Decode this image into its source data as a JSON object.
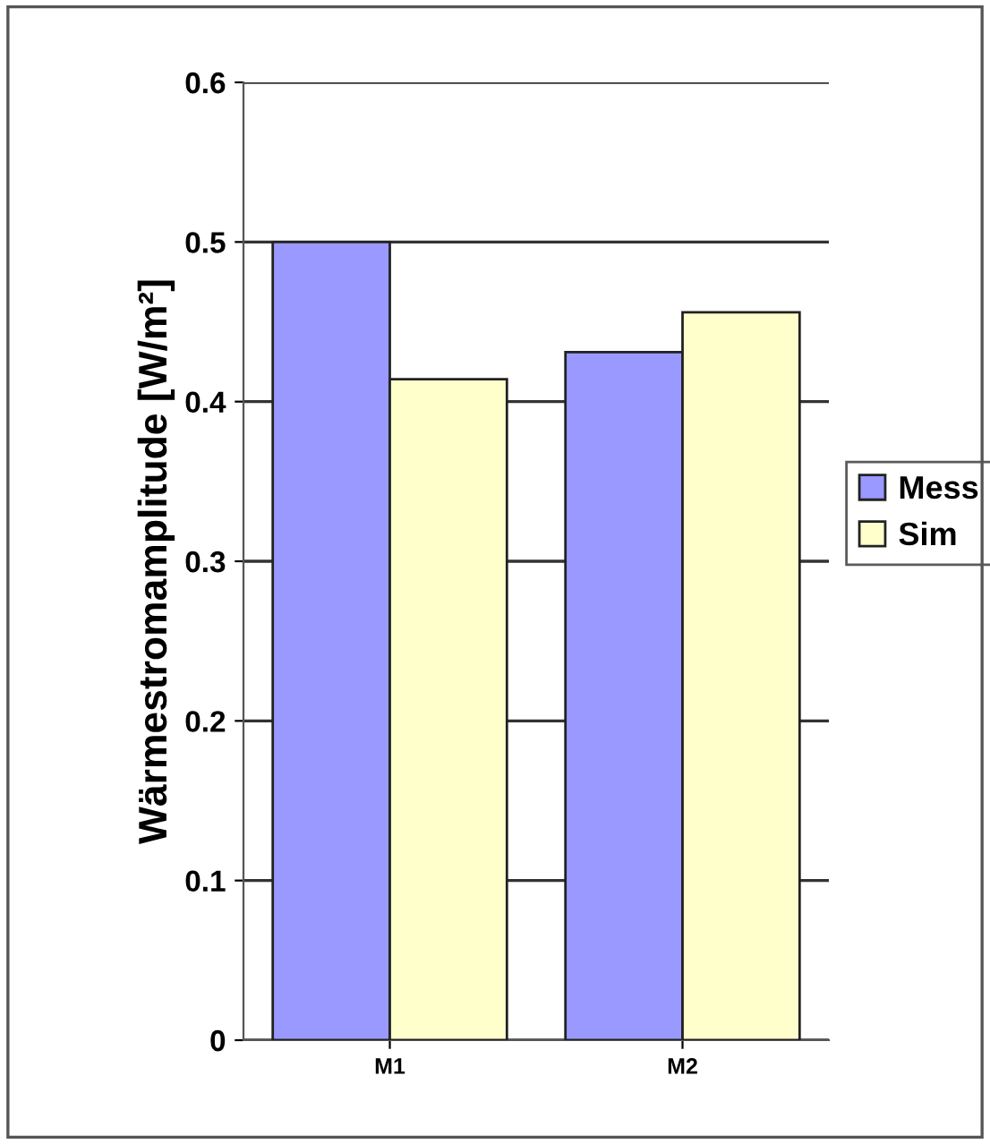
{
  "chart_data": {
    "type": "bar",
    "ylabel": "Wärmestromamplitude [W/m²]",
    "categories": [
      "M1",
      "M2"
    ],
    "series": [
      {
        "name": "Mess",
        "color": "#9999ff",
        "values": [
          0.5,
          0.431
        ]
      },
      {
        "name": "Sim",
        "color": "#ffffcc",
        "values": [
          0.414,
          0.456
        ]
      }
    ],
    "ylim": [
      0,
      0.6
    ],
    "yticks": [
      0,
      0.1,
      0.2,
      0.3,
      0.4,
      0.5,
      0.6
    ],
    "grid": "y",
    "legend": "right"
  }
}
